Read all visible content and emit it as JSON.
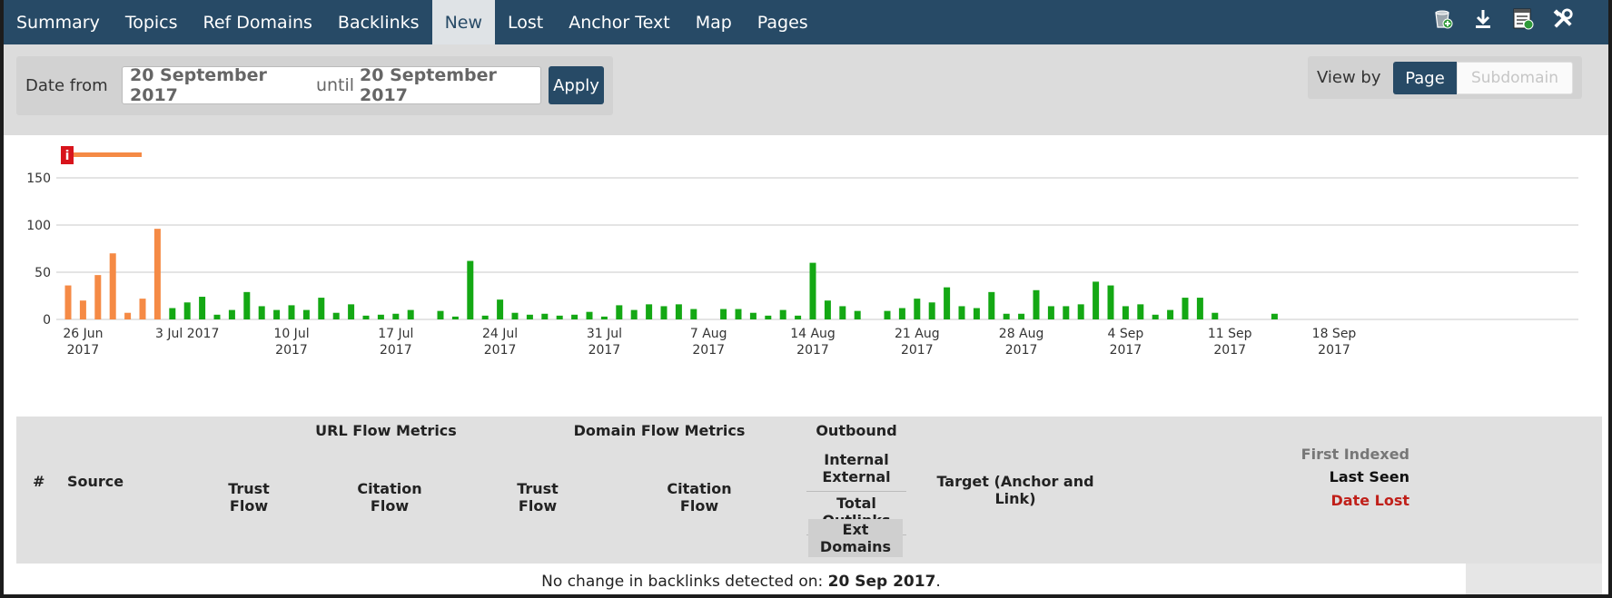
{
  "nav": {
    "tabs": [
      "Summary",
      "Topics",
      "Ref Domains",
      "Backlinks",
      "New",
      "Lost",
      "Anchor Text",
      "Map",
      "Pages"
    ],
    "active_tab": "New",
    "icons": [
      "add-to-bucket-icon",
      "download-icon",
      "report-icon",
      "tools-icon"
    ]
  },
  "filter": {
    "date_label": "Date from",
    "date_from": "20 September 2017",
    "until_label": "until",
    "date_to": "20 September 2017",
    "apply_label": "Apply",
    "view_label": "View by",
    "view_page": "Page",
    "view_subdomain": "Subdomain"
  },
  "chart_data": {
    "type": "bar",
    "y_ticks": [
      "0",
      "50",
      "100",
      "150"
    ],
    "ylim": [
      0,
      175
    ],
    "x_ticks": [
      {
        "line1": "26 Jun",
        "line2": "2017"
      },
      {
        "line1": "3 Jul 2017",
        "line2": ""
      },
      {
        "line1": "10 Jul",
        "line2": "2017"
      },
      {
        "line1": "17 Jul",
        "line2": "2017"
      },
      {
        "line1": "24 Jul",
        "line2": "2017"
      },
      {
        "line1": "31 Jul",
        "line2": "2017"
      },
      {
        "line1": "7 Aug",
        "line2": "2017"
      },
      {
        "line1": "14 Aug",
        "line2": "2017"
      },
      {
        "line1": "21 Aug",
        "line2": "2017"
      },
      {
        "line1": "28 Aug",
        "line2": "2017"
      },
      {
        "line1": "4 Sep",
        "line2": "2017"
      },
      {
        "line1": "11 Sep",
        "line2": "2017"
      },
      {
        "line1": "18 Sep",
        "line2": "2017"
      }
    ],
    "annotation_marker": "i",
    "colors": {
      "highlight": "#f58a45",
      "normal": "#14a814",
      "grid": "#c8c8c8",
      "marker": "#d8141c"
    },
    "bars": [
      {
        "date": "2017-06-25",
        "value": 36,
        "group": "highlight"
      },
      {
        "date": "2017-06-26",
        "value": 20,
        "group": "highlight"
      },
      {
        "date": "2017-06-27",
        "value": 47,
        "group": "highlight"
      },
      {
        "date": "2017-06-28",
        "value": 70,
        "group": "highlight"
      },
      {
        "date": "2017-06-29",
        "value": 7,
        "group": "highlight"
      },
      {
        "date": "2017-06-30",
        "value": 22,
        "group": "highlight"
      },
      {
        "date": "2017-07-01",
        "value": 96,
        "group": "highlight"
      },
      {
        "date": "2017-07-02",
        "value": 12,
        "group": "normal"
      },
      {
        "date": "2017-07-03",
        "value": 18,
        "group": "normal"
      },
      {
        "date": "2017-07-04",
        "value": 24,
        "group": "normal"
      },
      {
        "date": "2017-07-05",
        "value": 5,
        "group": "normal"
      },
      {
        "date": "2017-07-06",
        "value": 10,
        "group": "normal"
      },
      {
        "date": "2017-07-07",
        "value": 29,
        "group": "normal"
      },
      {
        "date": "2017-07-08",
        "value": 14,
        "group": "normal"
      },
      {
        "date": "2017-07-09",
        "value": 10,
        "group": "normal"
      },
      {
        "date": "2017-07-10",
        "value": 15,
        "group": "normal"
      },
      {
        "date": "2017-07-11",
        "value": 10,
        "group": "normal"
      },
      {
        "date": "2017-07-12",
        "value": 23,
        "group": "normal"
      },
      {
        "date": "2017-07-13",
        "value": 7,
        "group": "normal"
      },
      {
        "date": "2017-07-14",
        "value": 16,
        "group": "normal"
      },
      {
        "date": "2017-07-15",
        "value": 4,
        "group": "normal"
      },
      {
        "date": "2017-07-16",
        "value": 5,
        "group": "normal"
      },
      {
        "date": "2017-07-17",
        "value": 6,
        "group": "normal"
      },
      {
        "date": "2017-07-18",
        "value": 10,
        "group": "normal"
      },
      {
        "date": "2017-07-20",
        "value": 9,
        "group": "normal"
      },
      {
        "date": "2017-07-21",
        "value": 3,
        "group": "normal"
      },
      {
        "date": "2017-07-22",
        "value": 62,
        "group": "normal"
      },
      {
        "date": "2017-07-23",
        "value": 4,
        "group": "normal"
      },
      {
        "date": "2017-07-24",
        "value": 21,
        "group": "normal"
      },
      {
        "date": "2017-07-25",
        "value": 7,
        "group": "normal"
      },
      {
        "date": "2017-07-26",
        "value": 5,
        "group": "normal"
      },
      {
        "date": "2017-07-27",
        "value": 6,
        "group": "normal"
      },
      {
        "date": "2017-07-28",
        "value": 4,
        "group": "normal"
      },
      {
        "date": "2017-07-29",
        "value": 5,
        "group": "normal"
      },
      {
        "date": "2017-07-30",
        "value": 8,
        "group": "normal"
      },
      {
        "date": "2017-07-31",
        "value": 3,
        "group": "normal"
      },
      {
        "date": "2017-08-01",
        "value": 15,
        "group": "normal"
      },
      {
        "date": "2017-08-02",
        "value": 10,
        "group": "normal"
      },
      {
        "date": "2017-08-03",
        "value": 16,
        "group": "normal"
      },
      {
        "date": "2017-08-04",
        "value": 14,
        "group": "normal"
      },
      {
        "date": "2017-08-05",
        "value": 16,
        "group": "normal"
      },
      {
        "date": "2017-08-06",
        "value": 11,
        "group": "normal"
      },
      {
        "date": "2017-08-08",
        "value": 11,
        "group": "normal"
      },
      {
        "date": "2017-08-09",
        "value": 11,
        "group": "normal"
      },
      {
        "date": "2017-08-10",
        "value": 7,
        "group": "normal"
      },
      {
        "date": "2017-08-11",
        "value": 4,
        "group": "normal"
      },
      {
        "date": "2017-08-12",
        "value": 10,
        "group": "normal"
      },
      {
        "date": "2017-08-13",
        "value": 4,
        "group": "normal"
      },
      {
        "date": "2017-08-14",
        "value": 60,
        "group": "normal"
      },
      {
        "date": "2017-08-15",
        "value": 20,
        "group": "normal"
      },
      {
        "date": "2017-08-16",
        "value": 14,
        "group": "normal"
      },
      {
        "date": "2017-08-17",
        "value": 9,
        "group": "normal"
      },
      {
        "date": "2017-08-19",
        "value": 9,
        "group": "normal"
      },
      {
        "date": "2017-08-20",
        "value": 12,
        "group": "normal"
      },
      {
        "date": "2017-08-21",
        "value": 22,
        "group": "normal"
      },
      {
        "date": "2017-08-22",
        "value": 18,
        "group": "normal"
      },
      {
        "date": "2017-08-23",
        "value": 34,
        "group": "normal"
      },
      {
        "date": "2017-08-24",
        "value": 14,
        "group": "normal"
      },
      {
        "date": "2017-08-25",
        "value": 12,
        "group": "normal"
      },
      {
        "date": "2017-08-26",
        "value": 29,
        "group": "normal"
      },
      {
        "date": "2017-08-27",
        "value": 6,
        "group": "normal"
      },
      {
        "date": "2017-08-28",
        "value": 6,
        "group": "normal"
      },
      {
        "date": "2017-08-29",
        "value": 31,
        "group": "normal"
      },
      {
        "date": "2017-08-30",
        "value": 14,
        "group": "normal"
      },
      {
        "date": "2017-08-31",
        "value": 14,
        "group": "normal"
      },
      {
        "date": "2017-09-01",
        "value": 16,
        "group": "normal"
      },
      {
        "date": "2017-09-02",
        "value": 40,
        "group": "normal"
      },
      {
        "date": "2017-09-03",
        "value": 36,
        "group": "normal"
      },
      {
        "date": "2017-09-04",
        "value": 14,
        "group": "normal"
      },
      {
        "date": "2017-09-05",
        "value": 16,
        "group": "normal"
      },
      {
        "date": "2017-09-06",
        "value": 5,
        "group": "normal"
      },
      {
        "date": "2017-09-07",
        "value": 10,
        "group": "normal"
      },
      {
        "date": "2017-09-08",
        "value": 23,
        "group": "normal"
      },
      {
        "date": "2017-09-09",
        "value": 23,
        "group": "normal"
      },
      {
        "date": "2017-09-10",
        "value": 7,
        "group": "normal"
      },
      {
        "date": "2017-09-14",
        "value": 6,
        "group": "normal"
      }
    ]
  },
  "table": {
    "group_url": "URL Flow Metrics",
    "group_domain": "Domain Flow Metrics",
    "group_outbound": "Outbound",
    "col_num": "#",
    "col_source": "Source",
    "trust_flow_1": "Trust",
    "trust_flow_2": "Flow",
    "citation_flow_1": "Citation",
    "citation_flow_2": "Flow",
    "internal": "Internal",
    "external": "External",
    "total_outlinks": "Total Outlinks",
    "ext_domains": "Ext Domains",
    "target": "Target (Anchor and Link)",
    "first_indexed": "First Indexed",
    "last_seen": "Last Seen",
    "date_lost": "Date Lost",
    "message_prefix": "No change in backlinks detected on:",
    "message_date": "20 Sep 2017",
    "message_suffix": "."
  }
}
